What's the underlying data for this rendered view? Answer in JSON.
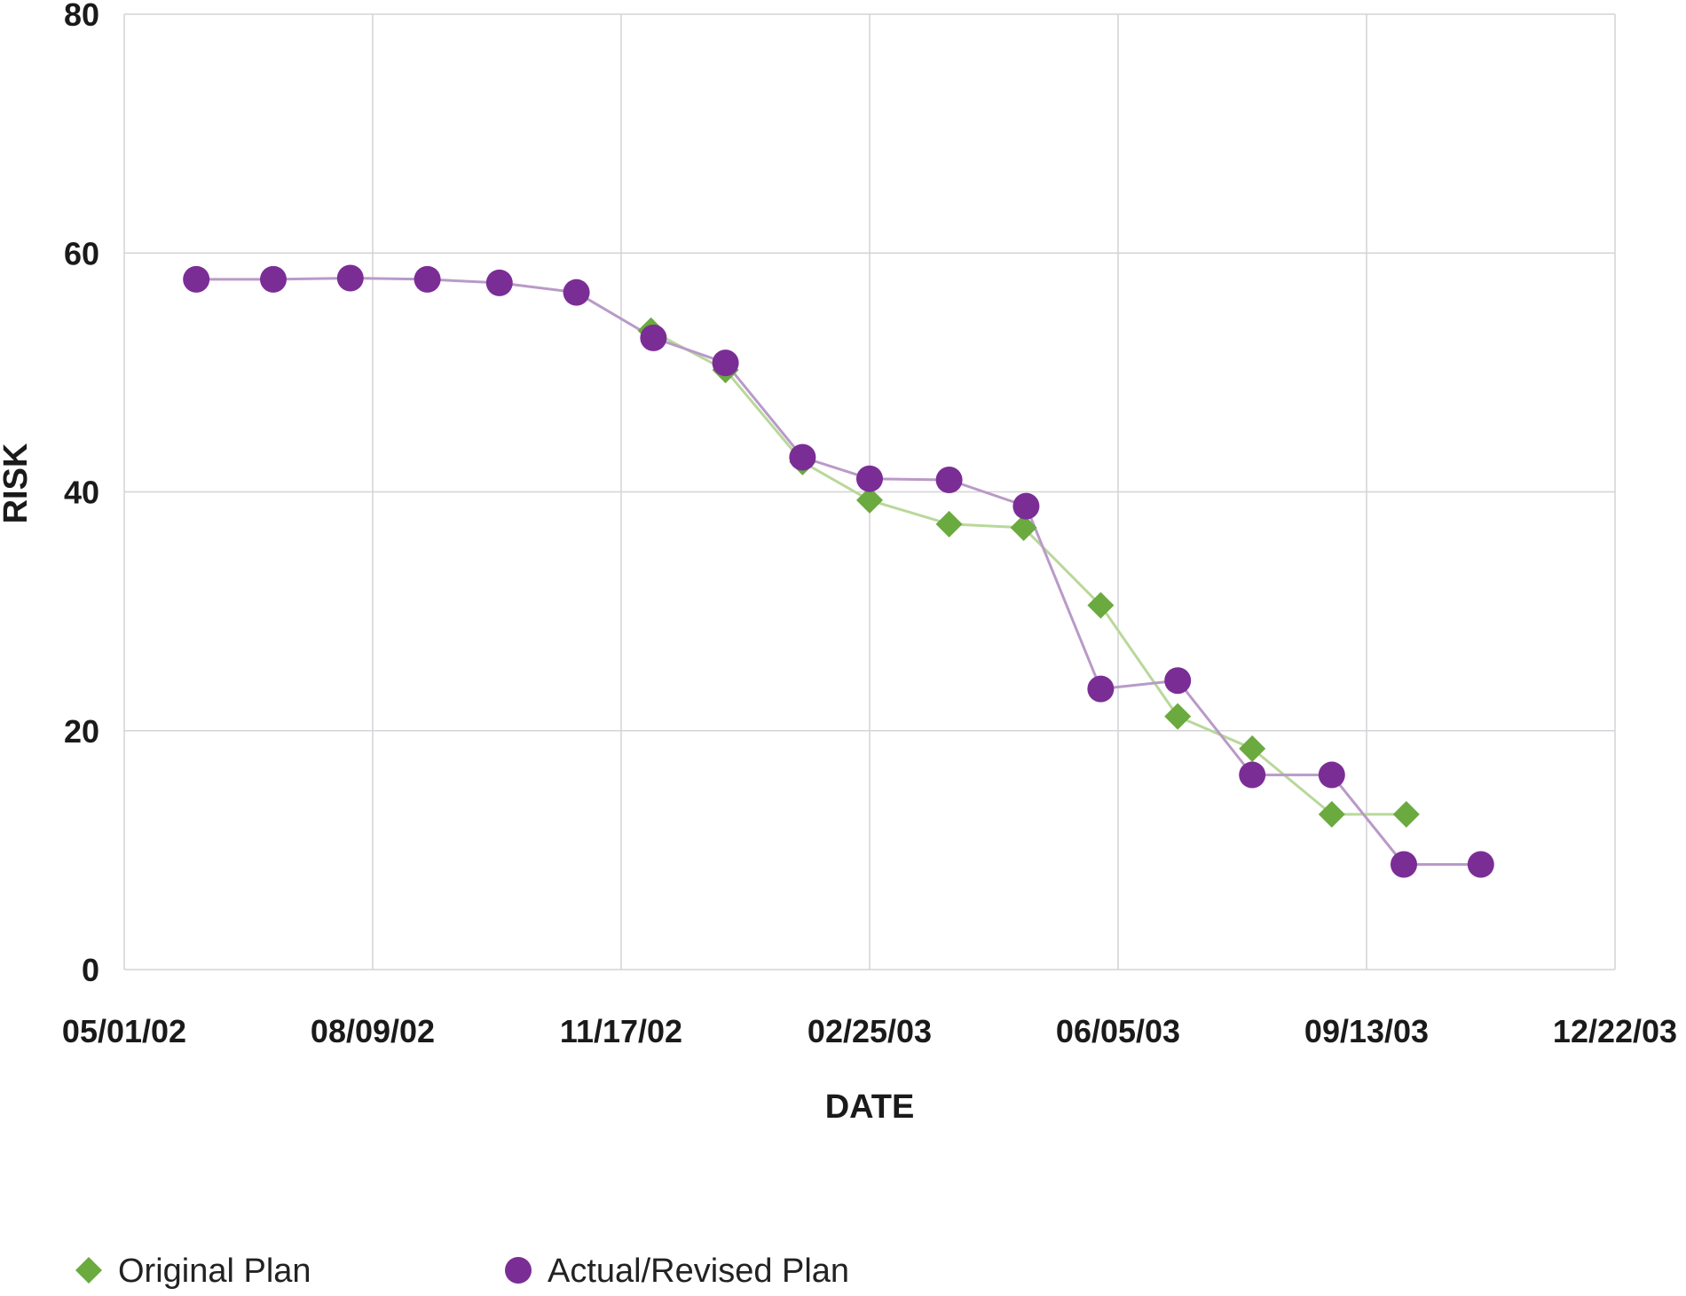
{
  "chart_data": {
    "type": "line",
    "xlabel": "DATE",
    "ylabel": "RISK",
    "ylim": [
      0,
      80
    ],
    "y_ticks": [
      "0",
      "20",
      "40",
      "60",
      "80"
    ],
    "x_ticks": [
      "05/01/02",
      "08/09/02",
      "11/17/02",
      "02/25/03",
      "06/05/03",
      "09/13/03",
      "12/22/03"
    ],
    "xlim": [
      "2002-05-01",
      "2003-12-22"
    ],
    "grid": true,
    "legend_position": "bottom-left",
    "series": [
      {
        "name": "Original Plan",
        "marker": "diamond",
        "marker_color": "#6aaa3f",
        "line_color": "#b9d89a",
        "points": [
          {
            "x": "2002-11-29",
            "y": 53.5
          },
          {
            "x": "2002-12-29",
            "y": 50.2
          },
          {
            "x": "2003-01-29",
            "y": 42.5
          },
          {
            "x": "2003-02-25",
            "y": 39.3
          },
          {
            "x": "2003-03-29",
            "y": 37.3
          },
          {
            "x": "2003-04-28",
            "y": 37.0
          },
          {
            "x": "2003-05-29",
            "y": 30.5
          },
          {
            "x": "2003-06-29",
            "y": 21.2
          },
          {
            "x": "2003-07-29",
            "y": 18.5
          },
          {
            "x": "2003-08-30",
            "y": 13.0
          },
          {
            "x": "2003-09-29",
            "y": 13.0
          }
        ]
      },
      {
        "name": "Actual/Revised Plan",
        "marker": "circle",
        "marker_color": "#7b2d96",
        "line_color": "#b99ac8",
        "points": [
          {
            "x": "2002-05-30",
            "y": 57.8
          },
          {
            "x": "2002-06-30",
            "y": 57.8
          },
          {
            "x": "2002-07-31",
            "y": 57.9
          },
          {
            "x": "2002-08-31",
            "y": 57.8
          },
          {
            "x": "2002-09-29",
            "y": 57.5
          },
          {
            "x": "2002-10-30",
            "y": 56.7
          },
          {
            "x": "2002-11-30",
            "y": 52.9
          },
          {
            "x": "2002-12-29",
            "y": 50.8
          },
          {
            "x": "2003-01-29",
            "y": 42.9
          },
          {
            "x": "2003-02-25",
            "y": 41.1
          },
          {
            "x": "2003-03-29",
            "y": 41.0
          },
          {
            "x": "2003-04-29",
            "y": 38.8
          },
          {
            "x": "2003-05-29",
            "y": 23.5
          },
          {
            "x": "2003-06-29",
            "y": 24.2
          },
          {
            "x": "2003-07-29",
            "y": 16.3
          },
          {
            "x": "2003-08-30",
            "y": 16.3
          },
          {
            "x": "2003-09-28",
            "y": 8.8
          },
          {
            "x": "2003-10-29",
            "y": 8.8
          }
        ]
      }
    ]
  }
}
